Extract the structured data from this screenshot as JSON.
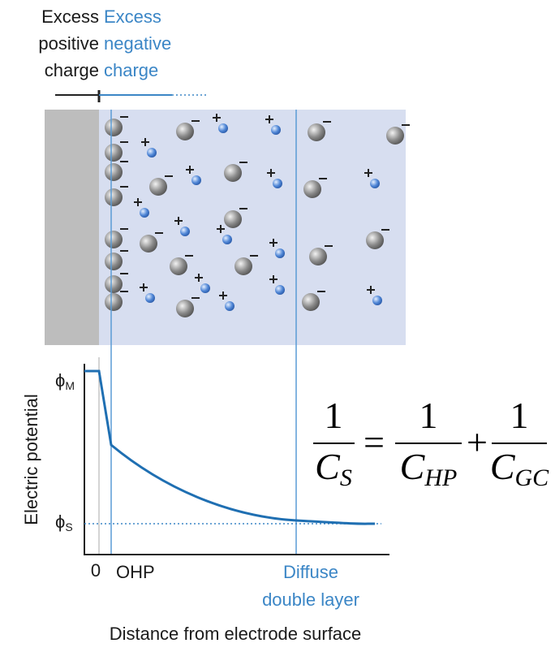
{
  "header": {
    "positive": [
      "Excess",
      "positive",
      "charge"
    ],
    "negative": [
      "Excess",
      "negative",
      "charge"
    ]
  },
  "graph": {
    "y_axis_label": "Electric potential",
    "phi_m": {
      "symbol": "ϕ",
      "subscript": "M"
    },
    "phi_s": {
      "symbol": "ϕ",
      "subscript": "S"
    },
    "x_origin": "0",
    "ohp": "OHP",
    "diffuse": [
      "Diffuse",
      "double layer"
    ],
    "x_axis_label": "Distance from electrode surface"
  },
  "equation": {
    "lhs": {
      "numerator": "1",
      "symbol": "C",
      "subscript": "S"
    },
    "equals": "=",
    "term1": {
      "numerator": "1",
      "symbol": "C",
      "subscript": "HP"
    },
    "plus": "+",
    "term2": {
      "numerator": "1",
      "symbol": "C",
      "subscript": "GC"
    }
  }
}
